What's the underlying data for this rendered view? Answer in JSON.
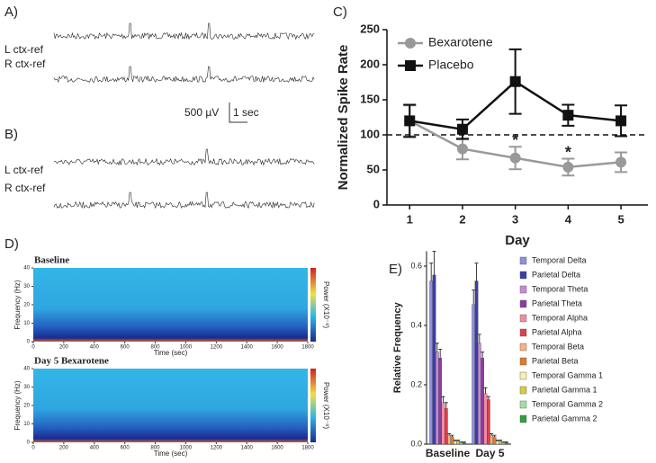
{
  "panels": {
    "a": "A)",
    "b": "B)",
    "c": "C)",
    "d": "D)",
    "e": "E)"
  },
  "eeg": {
    "left": "L ctx-ref",
    "right": "R ctx-ref",
    "scale_v": "500 µV",
    "scale_t": "1 sec"
  },
  "spectrograms": [
    {
      "title": "Baseline",
      "ylabel": "Frequency (Hz)",
      "xlabel": "Time (sec)",
      "colorbar_label": "Power (X10⁻⁸)",
      "xlim": [
        0,
        1800
      ],
      "xticks": [
        0,
        200,
        400,
        600,
        800,
        1000,
        1200,
        1400,
        1600,
        1800
      ],
      "ylim": [
        0,
        40
      ],
      "yticks": [
        0,
        10,
        20,
        30,
        40
      ]
    },
    {
      "title": "Day 5 Bexarotene",
      "ylabel": "Frequency (Hz)",
      "xlabel": "Time (sec)",
      "colorbar_label": "Power (X10⁻⁸)",
      "xlim": [
        0,
        1800
      ],
      "xticks": [
        0,
        200,
        400,
        600,
        800,
        1000,
        1200,
        1400,
        1600,
        1800
      ],
      "ylim": [
        0,
        40
      ],
      "yticks": [
        0,
        10,
        20,
        30,
        40
      ]
    }
  ],
  "chart_data": [
    {
      "type": "line",
      "ylabel": "Normalized Spike Rate",
      "xlabel": "Day",
      "x": [
        1,
        2,
        3,
        4,
        5
      ],
      "xlim": [
        0.57,
        5.51
      ],
      "xticks": [
        1,
        2,
        3,
        4,
        5
      ],
      "ylim": [
        0,
        250
      ],
      "yticks": [
        0,
        50,
        100,
        150,
        200,
        250
      ],
      "reference_line": 100,
      "series": [
        {
          "name": "Bexarotene",
          "color": "#999999",
          "marker": "circle",
          "values": [
            120,
            80,
            67,
            54,
            61
          ],
          "errors": [
            22,
            15,
            16,
            12,
            14
          ]
        },
        {
          "name": "Placebo",
          "color": "#111111",
          "marker": "square",
          "values": [
            120,
            108,
            176,
            128,
            120
          ],
          "errors": [
            23,
            14,
            46,
            15,
            22
          ]
        }
      ],
      "annotations": [
        {
          "text": "*",
          "x": 3
        },
        {
          "text": "*",
          "x": 4
        }
      ]
    },
    {
      "type": "bar",
      "ylabel": "Relative Frequency",
      "categories": [
        "Baseline",
        "Day 5"
      ],
      "ylim": [
        0,
        0.65
      ],
      "yticks": [
        {
          "value": 0,
          "label": "0.0"
        },
        0.2,
        0.4,
        0.6
      ],
      "series": [
        {
          "name": "Temporal Delta",
          "color": "#8c90dc",
          "values": [
            0.55,
            0.47
          ],
          "errors": [
            0.06,
            0.05
          ]
        },
        {
          "name": "Parietal Delta",
          "color": "#3a3ea8",
          "values": [
            0.57,
            0.55
          ],
          "errors": [
            0.08,
            0.06
          ]
        },
        {
          "name": "Temporal Theta",
          "color": "#c88ad8",
          "values": [
            0.31,
            0.34
          ],
          "errors": [
            0.03,
            0.03
          ]
        },
        {
          "name": "Parietal Theta",
          "color": "#8a3fa0",
          "values": [
            0.29,
            0.29
          ],
          "errors": [
            0.03,
            0.02
          ]
        },
        {
          "name": "Temporal Alpha",
          "color": "#f08ca2",
          "values": [
            0.14,
            0.17
          ],
          "errors": [
            0.02,
            0.02
          ]
        },
        {
          "name": "Parietal Alpha",
          "color": "#de3f4e",
          "values": [
            0.12,
            0.15
          ],
          "errors": [
            0.02,
            0.01
          ]
        },
        {
          "name": "Temporal Beta",
          "color": "#f8b282",
          "values": [
            0.03,
            0.03
          ],
          "errors": [
            0.005,
            0.005
          ]
        },
        {
          "name": "Parietal Beta",
          "color": "#e07830",
          "values": [
            0.025,
            0.025
          ],
          "errors": [
            0.005,
            0.005
          ]
        },
        {
          "name": "Temporal Gamma 1",
          "color": "#f6f0b4",
          "values": [
            0.01,
            0.01
          ],
          "errors": [
            0.003,
            0.003
          ]
        },
        {
          "name": "Parietal Gamma 1",
          "color": "#d8cc40",
          "values": [
            0.01,
            0.01
          ],
          "errors": [
            0.003,
            0.003
          ]
        },
        {
          "name": "Temporal Gamma 2",
          "color": "#a2e0a2",
          "values": [
            0.005,
            0.005
          ],
          "errors": [
            0.002,
            0.002
          ]
        },
        {
          "name": "Parietal Gamma 2",
          "color": "#2f9f3f",
          "values": [
            0.005,
            0.005
          ],
          "errors": [
            0.002,
            0.002
          ]
        }
      ]
    }
  ]
}
